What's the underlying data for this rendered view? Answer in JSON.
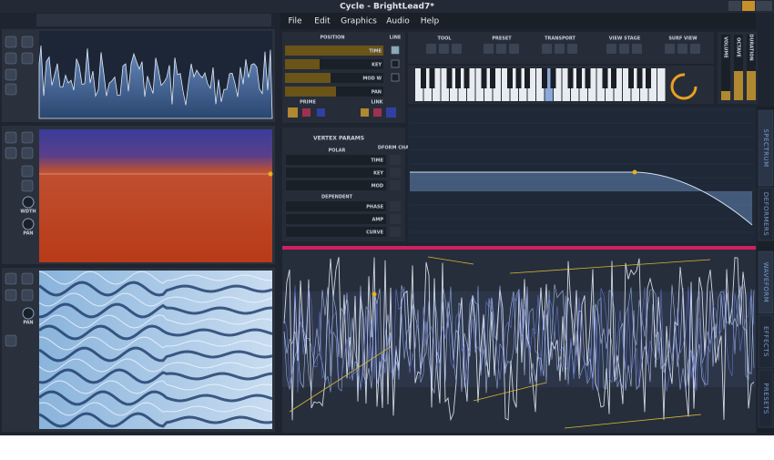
{
  "window": {
    "title": "Cycle - BrightLead7*"
  },
  "menu": [
    "File",
    "Edit",
    "Graphics",
    "Audio",
    "Help"
  ],
  "position_panel": {
    "title": "POSITION",
    "line": "LINE",
    "rows": [
      "TIME",
      "KEY",
      "MOD W",
      "PAN"
    ],
    "prime": "PRIME",
    "link": "LINK"
  },
  "toolbar": {
    "groups": [
      "TOOL",
      "PRESET",
      "TRANSPORT",
      "VIEW STAGE",
      "SURF VIEW"
    ]
  },
  "meters": [
    "VOLUME",
    "OCTAVE",
    "DURATION"
  ],
  "vertex_params": {
    "title": "VERTEX PARAMS",
    "polar": "POLAR",
    "dform_chan": "DFORM CHAN",
    "polar_rows": [
      "TIME",
      "KEY",
      "MOD"
    ],
    "dependent": "DEPENDENT",
    "dependent_rows": [
      "PHASE",
      "AMP",
      "CURVE"
    ]
  },
  "side_tabs": [
    "SPECTRUM",
    "DEFORMERS",
    "WAVEFORM",
    "EFFECTS",
    "PRESETS"
  ],
  "left_labels": {
    "width": "WDTH",
    "pan": "PAN",
    "pan_lower": "PAN"
  }
}
